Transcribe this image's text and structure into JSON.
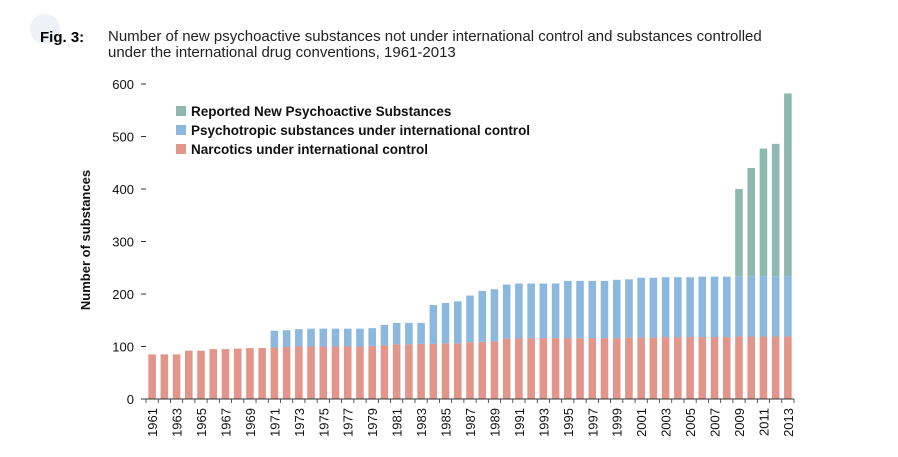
{
  "figure": {
    "label": "Fig. 3:",
    "title_line1": "Number of new psychoactive substances not under international control and substances controlled",
    "title_line2": "under the international drug conventions, 1961-2013"
  },
  "colors": {
    "accent": "#3b7bbf",
    "narcotics": "#e2958a",
    "psychotropic": "#8db8de",
    "nps": "#8fb8b0"
  },
  "chart_data": {
    "type": "bar",
    "stacked": true,
    "ylabel": "Number of substances",
    "ylim": [
      0,
      600
    ],
    "yticks": [
      0,
      100,
      200,
      300,
      400,
      500,
      600
    ],
    "grid": false,
    "legend_position": "top-left",
    "categories": [
      "1961",
      "1962",
      "1963",
      "1964",
      "1965",
      "1966",
      "1967",
      "1968",
      "1969",
      "1970",
      "1971",
      "1972",
      "1973",
      "1974",
      "1975",
      "1976",
      "1977",
      "1978",
      "1979",
      "1980",
      "1981",
      "1982",
      "1983",
      "1984",
      "1985",
      "1986",
      "1987",
      "1988",
      "1989",
      "1990",
      "1991",
      "1992",
      "1993",
      "1994",
      "1995",
      "1996",
      "1997",
      "1998",
      "1999",
      "2000",
      "2001",
      "2002",
      "2003",
      "2004",
      "2005",
      "2006",
      "2007",
      "2008",
      "2009",
      "2010",
      "2011",
      "2012",
      "2013"
    ],
    "xtick_labels": [
      "1961",
      "1963",
      "1965",
      "1967",
      "1969",
      "1971",
      "1973",
      "1975",
      "1977",
      "1979",
      "1981",
      "1983",
      "1985",
      "1987",
      "1989",
      "1991",
      "1993",
      "1995",
      "1997",
      "1999",
      "2001",
      "2003",
      "2005",
      "2007",
      "2009",
      "2011",
      "2013"
    ],
    "series": [
      {
        "name": "Narcotics under international control",
        "values": [
          85,
          85,
          85,
          92,
          92,
          95,
          95,
          96,
          97,
          97,
          98,
          99,
          100,
          100,
          100,
          100,
          100,
          100,
          101,
          102,
          104,
          104,
          105,
          105,
          106,
          106,
          108,
          109,
          110,
          115,
          116,
          116,
          116,
          116,
          116,
          116,
          116,
          116,
          116,
          117,
          117,
          117,
          118,
          118,
          118,
          118,
          118,
          118,
          119,
          119,
          119,
          119,
          119
        ]
      },
      {
        "name": "Psychotropic substances under international control",
        "values": [
          0,
          0,
          0,
          0,
          0,
          0,
          0,
          0,
          0,
          0,
          32,
          32,
          33,
          34,
          34,
          34,
          34,
          34,
          34,
          39,
          41,
          41,
          40,
          74,
          77,
          80,
          89,
          97,
          99,
          103,
          104,
          104,
          104,
          104,
          109,
          109,
          109,
          109,
          111,
          111,
          114,
          114,
          114,
          114,
          114,
          115,
          115,
          115,
          115,
          115,
          115,
          115,
          115
        ]
      },
      {
        "name": "Reported New Psychoactive Substances",
        "values": [
          0,
          0,
          0,
          0,
          0,
          0,
          0,
          0,
          0,
          0,
          0,
          0,
          0,
          0,
          0,
          0,
          0,
          0,
          0,
          0,
          0,
          0,
          0,
          0,
          0,
          0,
          0,
          0,
          0,
          0,
          0,
          0,
          0,
          0,
          0,
          0,
          0,
          0,
          0,
          0,
          0,
          0,
          0,
          0,
          0,
          0,
          0,
          0,
          166,
          206,
          243,
          252,
          348
        ]
      }
    ]
  }
}
